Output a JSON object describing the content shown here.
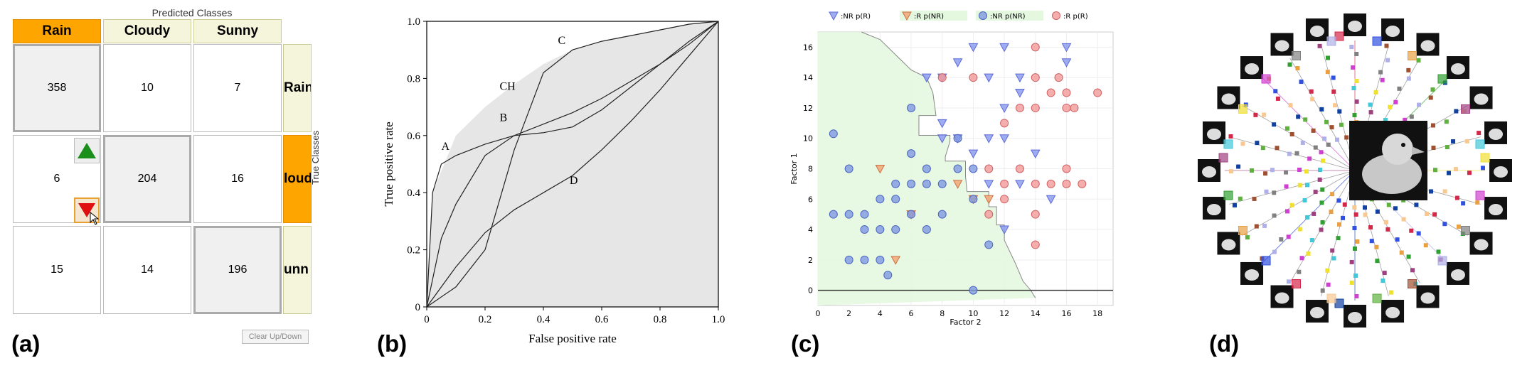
{
  "panel_labels": [
    "(a)",
    "(b)",
    "(c)",
    "(d)"
  ],
  "colors": {
    "accent": "#ffa500",
    "header_bg": "#f5f5dc",
    "up_arrow": "#1a8f1a",
    "down_arrow": "#e01010"
  },
  "chart_data": [
    {
      "type": "table",
      "title": "Predicted Classes",
      "ylabel": "True Classes",
      "columns": [
        "Rain",
        "Cloudy",
        "Sunny"
      ],
      "rows": [
        "Rain",
        "loud",
        "unn"
      ],
      "active_column": "Rain",
      "active_row": "loud",
      "cells": [
        [
          358,
          10,
          7
        ],
        [
          6,
          204,
          16
        ],
        [
          15,
          14,
          196
        ]
      ],
      "clear_button": "Clear Up/Down"
    },
    {
      "type": "line",
      "xlabel": "False positive rate",
      "ylabel": "True positive rate",
      "xlim": [
        0,
        1
      ],
      "ylim": [
        0,
        1
      ],
      "xticks": [
        "0",
        "0.2",
        "0.4",
        "0.6",
        "0.8",
        "1.0"
      ],
      "yticks": [
        "0",
        "0.2",
        "0.4",
        "0.6",
        "0.8",
        "1.0"
      ],
      "curve_labels": [
        {
          "text": "A",
          "x": 0.05,
          "y": 0.55
        },
        {
          "text": "B",
          "x": 0.25,
          "y": 0.65
        },
        {
          "text": "C",
          "x": 0.45,
          "y": 0.92
        },
        {
          "text": "CH",
          "x": 0.25,
          "y": 0.76
        },
        {
          "text": "D",
          "x": 0.49,
          "y": 0.43
        }
      ],
      "series": [
        {
          "name": "A",
          "x": [
            0,
            0.02,
            0.05,
            0.1,
            0.2,
            0.3,
            0.4,
            0.5,
            0.6,
            0.7,
            0.8,
            0.9,
            1
          ],
          "y": [
            0,
            0.4,
            0.5,
            0.53,
            0.57,
            0.6,
            0.64,
            0.68,
            0.73,
            0.79,
            0.85,
            0.92,
            1
          ]
        },
        {
          "name": "B",
          "x": [
            0,
            0.05,
            0.1,
            0.2,
            0.3,
            0.4,
            0.5,
            0.6,
            0.7,
            0.8,
            0.9,
            1
          ],
          "y": [
            0,
            0.24,
            0.36,
            0.53,
            0.6,
            0.61,
            0.63,
            0.69,
            0.77,
            0.85,
            0.93,
            1
          ]
        },
        {
          "name": "C",
          "x": [
            0,
            0.1,
            0.2,
            0.3,
            0.4,
            0.5,
            0.6,
            0.7,
            0.8,
            0.9,
            1
          ],
          "y": [
            0,
            0.07,
            0.2,
            0.55,
            0.82,
            0.9,
            0.93,
            0.95,
            0.97,
            0.99,
            1
          ]
        },
        {
          "name": "D",
          "x": [
            0,
            0.1,
            0.2,
            0.3,
            0.4,
            0.5,
            0.6,
            0.7,
            0.8,
            0.9,
            1
          ],
          "y": [
            0,
            0.14,
            0.26,
            0.34,
            0.4,
            0.46,
            0.55,
            0.65,
            0.76,
            0.88,
            1
          ]
        },
        {
          "name": "CH",
          "x": [
            0,
            0.02,
            0.1,
            0.2,
            0.3,
            0.4,
            0.5,
            0.6,
            0.7,
            0.8,
            0.9,
            1
          ],
          "y": [
            0,
            0.4,
            0.6,
            0.7,
            0.78,
            0.85,
            0.9,
            0.93,
            0.95,
            0.97,
            0.99,
            1
          ]
        }
      ]
    },
    {
      "type": "scatter",
      "xlabel": "Factor 2",
      "ylabel": "Factor 1",
      "xlim": [
        0,
        19
      ],
      "ylim": [
        -1,
        17
      ],
      "xticks": [
        0,
        2,
        4,
        6,
        8,
        10,
        12,
        14,
        16,
        18
      ],
      "yticks": [
        0,
        2,
        4,
        6,
        8,
        10,
        12,
        14,
        16
      ],
      "legend": [
        "NR p(R)",
        "R p(NR)",
        "NR p(NR)",
        "R p(R)"
      ],
      "region_boundary": {
        "x": [
          2.8,
          4,
          5,
          6,
          7,
          7.4,
          7.6,
          6.5,
          6.5,
          8.5,
          8.5,
          8.2,
          8.2,
          9.5,
          9.5,
          9.6,
          11,
          11,
          11.5,
          11.5,
          12,
          12,
          12.7,
          13.2,
          13.7,
          14
        ],
        "y": [
          17,
          16.5,
          15.5,
          14.5,
          14,
          13,
          11.5,
          11.5,
          10.2,
          10.2,
          9.8,
          8.8,
          8.5,
          8.5,
          7.5,
          6.5,
          6.5,
          5.5,
          5.5,
          4.3,
          4.3,
          3.3,
          1.8,
          0.6,
          0,
          -0.5
        ]
      },
      "series": [
        {
          "name": "NR p(R)",
          "points": [
            [
              10,
              16
            ],
            [
              12,
              16
            ],
            [
              16,
              16
            ],
            [
              9,
              15
            ],
            [
              11,
              14
            ],
            [
              13,
              14
            ],
            [
              7,
              14
            ],
            [
              8,
              14
            ],
            [
              16,
              15
            ],
            [
              13,
              13
            ],
            [
              12,
              12
            ],
            [
              12,
              10
            ],
            [
              11,
              10
            ],
            [
              10,
              9
            ],
            [
              11,
              7
            ],
            [
              13,
              7
            ],
            [
              14,
              9
            ],
            [
              15,
              6
            ],
            [
              12,
              4
            ],
            [
              9,
              10
            ],
            [
              8,
              10
            ],
            [
              8,
              11
            ]
          ]
        },
        {
          "name": "R p(NR)",
          "points": [
            [
              4,
              8
            ],
            [
              9,
              7
            ],
            [
              10,
              6
            ],
            [
              6,
              5
            ],
            [
              5,
              2
            ],
            [
              11,
              6
            ]
          ]
        },
        {
          "name": "NR p(NR)",
          "points": [
            [
              1,
              10.3
            ],
            [
              1,
              5
            ],
            [
              2,
              8
            ],
            [
              2,
              5
            ],
            [
              2,
              2
            ],
            [
              3,
              4
            ],
            [
              3,
              5
            ],
            [
              3,
              2
            ],
            [
              4,
              4
            ],
            [
              4,
              6
            ],
            [
              4,
              2
            ],
            [
              4.5,
              1
            ],
            [
              5,
              7
            ],
            [
              5,
              6
            ],
            [
              5,
              4
            ],
            [
              6,
              9
            ],
            [
              6,
              7
            ],
            [
              6,
              5
            ],
            [
              7,
              7
            ],
            [
              7,
              4
            ],
            [
              7,
              8
            ],
            [
              8,
              7
            ],
            [
              8,
              5
            ],
            [
              9,
              10
            ],
            [
              9,
              8
            ],
            [
              10,
              8
            ],
            [
              10,
              6
            ],
            [
              10,
              0
            ],
            [
              6,
              12
            ],
            [
              11,
              3
            ]
          ]
        },
        {
          "name": "R p(R)",
          "points": [
            [
              8,
              14
            ],
            [
              10,
              14
            ],
            [
              14,
              16
            ],
            [
              14,
              14
            ],
            [
              15.5,
              14
            ],
            [
              16,
              13
            ],
            [
              16,
              12
            ],
            [
              16.5,
              12
            ],
            [
              18,
              13
            ],
            [
              15,
              13
            ],
            [
              14,
              12
            ],
            [
              13,
              12
            ],
            [
              12,
              11
            ],
            [
              11,
              8
            ],
            [
              12,
              7
            ],
            [
              13,
              8
            ],
            [
              14,
              7
            ],
            [
              15,
              7
            ],
            [
              16,
              7
            ],
            [
              17,
              7
            ],
            [
              14,
              5
            ],
            [
              14,
              3
            ],
            [
              11,
              5
            ],
            [
              12,
              6
            ],
            [
              16,
              8
            ]
          ]
        }
      ]
    },
    {
      "type": "diagram",
      "description_hidden": true
    }
  ]
}
